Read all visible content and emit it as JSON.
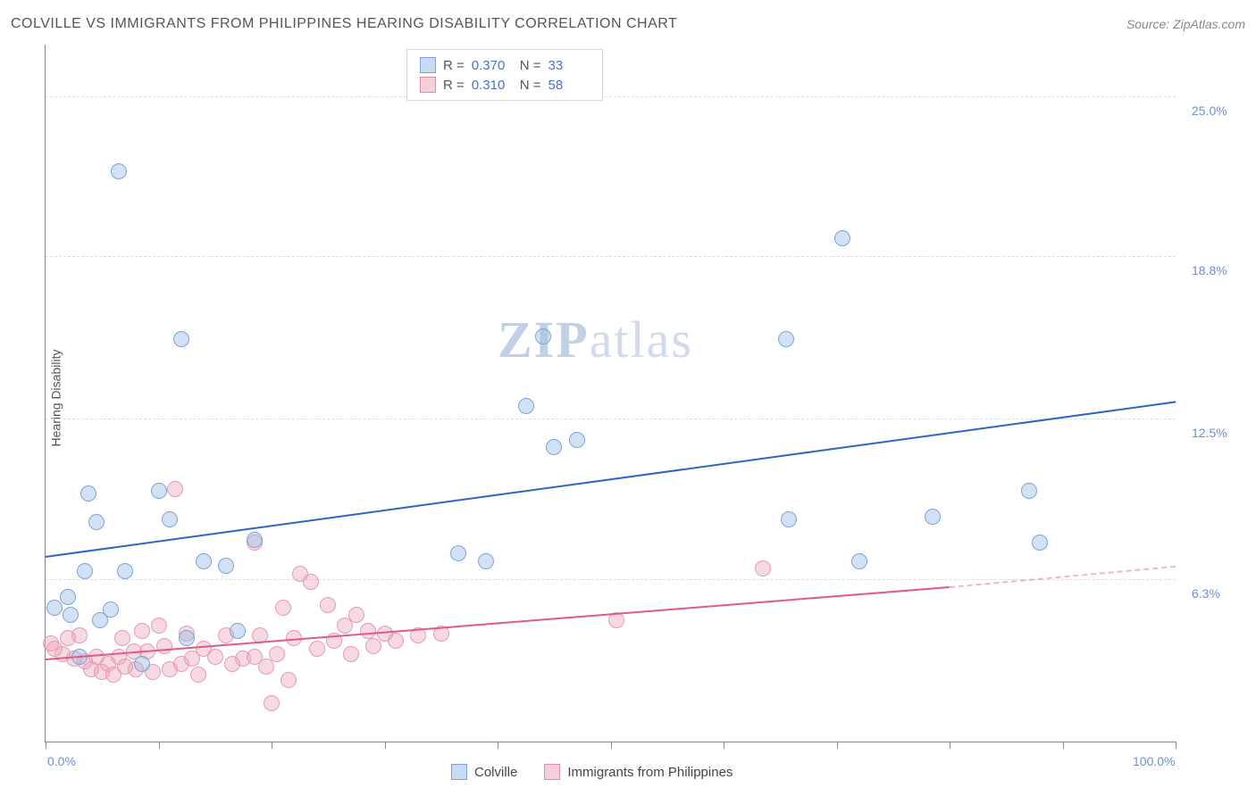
{
  "header": {
    "title": "COLVILLE VS IMMIGRANTS FROM PHILIPPINES HEARING DISABILITY CORRELATION CHART",
    "source_prefix": "Source: ",
    "source_link": "ZipAtlas.com"
  },
  "axes": {
    "ylabel": "Hearing Disability",
    "xmin": 0,
    "xmax": 100,
    "ymin": 0,
    "ymax": 27,
    "y_gridlines": [
      6.3,
      12.5,
      18.8,
      25.0
    ],
    "y_tick_labels": [
      "6.3%",
      "12.5%",
      "18.8%",
      "25.0%"
    ],
    "x_ticks": [
      0,
      10,
      20,
      30,
      40,
      50,
      60,
      70,
      80,
      90,
      100
    ],
    "x_tick_labels_shown": {
      "0": "0.0%",
      "100": "100.0%"
    },
    "grid_color": "#dddddd",
    "axis_color": "#888888",
    "tick_label_color": "#6b8fd4"
  },
  "watermark": {
    "text_bold": "ZIP",
    "text_light": "atlas"
  },
  "legend_stats": {
    "rows": [
      {
        "swatch_fill": "#c9dbf2",
        "swatch_border": "#7ba3db",
        "r_label": "R =",
        "r_value": "0.370",
        "n_label": "N =",
        "n_value": "33"
      },
      {
        "swatch_fill": "#f6cfd9",
        "swatch_border": "#e38ca3",
        "r_label": "R =",
        "r_value": "0.310",
        "n_label": "N =",
        "n_value": "58"
      }
    ]
  },
  "series_legend": {
    "items": [
      {
        "swatch_fill": "#c9dbf2",
        "swatch_border": "#7ba3db",
        "label": "Colville"
      },
      {
        "swatch_fill": "#f6cfd9",
        "swatch_border": "#e38ca3",
        "label": "Immigrants from Philippines"
      }
    ]
  },
  "styling": {
    "marker_radius": 9,
    "series_a": {
      "fill": "rgba(155,190,230,0.45)",
      "stroke": "#7ba3db"
    },
    "series_b": {
      "fill": "rgba(235,160,180,0.40)",
      "stroke": "#e59bb0"
    },
    "trend_a_color": "#2f63c4",
    "trend_b_color": "#e05a84",
    "trend_b_dash_color": "rgba(224,90,132,0.45)"
  },
  "trend_lines": {
    "a": {
      "x1": 0,
      "y1": 7.2,
      "x2": 100,
      "y2": 13.2
    },
    "b_solid": {
      "x1": 0,
      "y1": 3.2,
      "x2": 80,
      "y2": 6.0
    },
    "b_dash": {
      "x1": 80,
      "y1": 6.0,
      "x2": 100,
      "y2": 6.8
    }
  },
  "series_a_points": [
    {
      "x": 6.5,
      "y": 22.1
    },
    {
      "x": 70.5,
      "y": 19.5
    },
    {
      "x": 12,
      "y": 15.6
    },
    {
      "x": 44,
      "y": 15.7
    },
    {
      "x": 65.5,
      "y": 15.6
    },
    {
      "x": 42.5,
      "y": 13.0
    },
    {
      "x": 45,
      "y": 11.4
    },
    {
      "x": 47,
      "y": 11.7
    },
    {
      "x": 87,
      "y": 9.7
    },
    {
      "x": 3.8,
      "y": 9.6
    },
    {
      "x": 11,
      "y": 8.6
    },
    {
      "x": 4.5,
      "y": 8.5
    },
    {
      "x": 65.8,
      "y": 8.6
    },
    {
      "x": 78.5,
      "y": 8.7
    },
    {
      "x": 88,
      "y": 7.7
    },
    {
      "x": 18.5,
      "y": 7.8
    },
    {
      "x": 72,
      "y": 7.0
    },
    {
      "x": 3.5,
      "y": 6.6
    },
    {
      "x": 7,
      "y": 6.6
    },
    {
      "x": 14,
      "y": 7.0
    },
    {
      "x": 2,
      "y": 5.6
    },
    {
      "x": 16,
      "y": 6.8
    },
    {
      "x": 36.5,
      "y": 7.3
    },
    {
      "x": 39,
      "y": 7.0
    },
    {
      "x": 2.2,
      "y": 4.9
    },
    {
      "x": 4.8,
      "y": 4.7
    },
    {
      "x": 17,
      "y": 4.3
    },
    {
      "x": 8.5,
      "y": 3.0
    },
    {
      "x": 3.0,
      "y": 3.3
    },
    {
      "x": 5.8,
      "y": 5.1
    },
    {
      "x": 0.8,
      "y": 5.2
    },
    {
      "x": 10,
      "y": 9.7
    },
    {
      "x": 12.5,
      "y": 4.0
    }
  ],
  "series_b_points": [
    {
      "x": 11.5,
      "y": 9.8
    },
    {
      "x": 18.5,
      "y": 7.7
    },
    {
      "x": 63.5,
      "y": 6.7
    },
    {
      "x": 22.5,
      "y": 6.5
    },
    {
      "x": 23.5,
      "y": 6.2
    },
    {
      "x": 25,
      "y": 5.3
    },
    {
      "x": 21,
      "y": 5.2
    },
    {
      "x": 50.5,
      "y": 4.7
    },
    {
      "x": 26.5,
      "y": 4.5
    },
    {
      "x": 28.5,
      "y": 4.3
    },
    {
      "x": 30,
      "y": 4.2
    },
    {
      "x": 22,
      "y": 4.0
    },
    {
      "x": 19,
      "y": 4.1
    },
    {
      "x": 16,
      "y": 4.1
    },
    {
      "x": 14,
      "y": 3.6
    },
    {
      "x": 12.5,
      "y": 4.2
    },
    {
      "x": 10.5,
      "y": 3.7
    },
    {
      "x": 9,
      "y": 3.5
    },
    {
      "x": 7.8,
      "y": 3.5
    },
    {
      "x": 6.5,
      "y": 3.3
    },
    {
      "x": 5.5,
      "y": 3.0
    },
    {
      "x": 4.5,
      "y": 3.3
    },
    {
      "x": 3.5,
      "y": 3.1
    },
    {
      "x": 2.5,
      "y": 3.2
    },
    {
      "x": 1.5,
      "y": 3.4
    },
    {
      "x": 0.8,
      "y": 3.6
    },
    {
      "x": 0.5,
      "y": 3.8
    },
    {
      "x": 2.0,
      "y": 4.0
    },
    {
      "x": 3.0,
      "y": 4.1
    },
    {
      "x": 4.0,
      "y": 2.8
    },
    {
      "x": 5.0,
      "y": 2.7
    },
    {
      "x": 6.0,
      "y": 2.6
    },
    {
      "x": 7.0,
      "y": 2.9
    },
    {
      "x": 8.0,
      "y": 2.8
    },
    {
      "x": 9.5,
      "y": 2.7
    },
    {
      "x": 11,
      "y": 2.8
    },
    {
      "x": 12,
      "y": 3.0
    },
    {
      "x": 13,
      "y": 3.2
    },
    {
      "x": 13.5,
      "y": 2.6
    },
    {
      "x": 15,
      "y": 3.3
    },
    {
      "x": 16.5,
      "y": 3.0
    },
    {
      "x": 17.5,
      "y": 3.2
    },
    {
      "x": 18.5,
      "y": 3.3
    },
    {
      "x": 19.5,
      "y": 2.9
    },
    {
      "x": 20.5,
      "y": 3.4
    },
    {
      "x": 24,
      "y": 3.6
    },
    {
      "x": 25.5,
      "y": 3.9
    },
    {
      "x": 27,
      "y": 3.4
    },
    {
      "x": 29,
      "y": 3.7
    },
    {
      "x": 31,
      "y": 3.9
    },
    {
      "x": 33,
      "y": 4.1
    },
    {
      "x": 35,
      "y": 4.2
    },
    {
      "x": 27.5,
      "y": 4.9
    },
    {
      "x": 20,
      "y": 1.5
    },
    {
      "x": 21.5,
      "y": 2.4
    },
    {
      "x": 8.5,
      "y": 4.3
    },
    {
      "x": 10,
      "y": 4.5
    },
    {
      "x": 6.8,
      "y": 4.0
    }
  ]
}
